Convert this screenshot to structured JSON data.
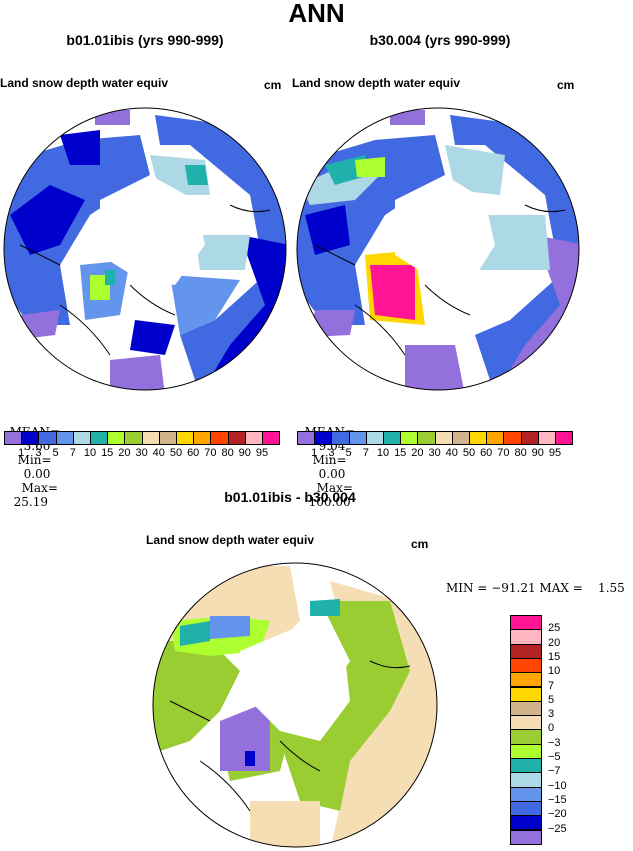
{
  "page_title": "ANN",
  "panels": [
    {
      "case_title": "b01.01ibis (yrs 990-999)",
      "var_label": "Land snow depth water equiv",
      "units": "cm",
      "stats": {
        "mean_label": "MEAN=",
        "mean": "3.60",
        "min_label": "Min=",
        "min": "0.00",
        "max_label": "Max=",
        "max": "25.19"
      }
    },
    {
      "case_title": "b30.004 (yrs 990-999)",
      "var_label": "Land snow depth water equiv",
      "units": "cm",
      "stats": {
        "mean_label": "MEAN=",
        "mean": "9.04",
        "min_label": "Min=",
        "min": "0.00",
        "max_label": "Max=",
        "max": "100.00"
      }
    }
  ],
  "top_colorbar": {
    "colors": [
      "#9370DB",
      "#0000CD",
      "#4169E1",
      "#6495ED",
      "#ADD8E6",
      "#20B2AA",
      "#ADFF2F",
      "#9ACD32",
      "#F5DEB3",
      "#D2B48C",
      "#FFD700",
      "#FFA500",
      "#FF4500",
      "#B22222",
      "#FFB6C1",
      "#FF1493"
    ],
    "labels": [
      "1",
      "3",
      "5",
      "7",
      "10",
      "15",
      "20",
      "30",
      "40",
      "50",
      "60",
      "70",
      "80",
      "90",
      "95"
    ]
  },
  "diff": {
    "title": "b01.01ibis - b30.004",
    "var_label": "Land snow depth water equiv",
    "units": "cm",
    "stats_text": "MIN = −91.21 MAX =    1.55",
    "colorbar": {
      "colors": [
        "#FF1493",
        "#FFB6C1",
        "#B22222",
        "#FF4500",
        "#FFA500",
        "#FFD700",
        "#D2B48C",
        "#F5DEB3",
        "#9ACD32",
        "#ADFF2F",
        "#20B2AA",
        "#ADD8E6",
        "#6495ED",
        "#4169E1",
        "#0000CD",
        "#9370DB"
      ],
      "labels": [
        "25",
        "20",
        "15",
        "10",
        "7",
        "5",
        "3",
        "0",
        "−3",
        "−5",
        "−7",
        "−10",
        "−15",
        "−20",
        "−25"
      ]
    }
  }
}
